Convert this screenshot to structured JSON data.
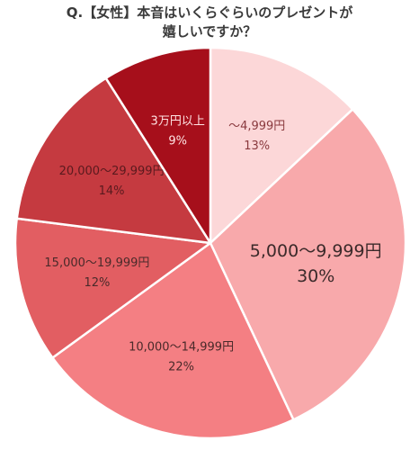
{
  "title_lines": [
    "Q.【女性】本音はいくらぐらいのプレゼントが",
    "嬉しいですか？"
  ],
  "chart_data": {
    "type": "pie",
    "title": "Q.【女性】本音はいくらぐらいのプレゼントが嬉しいですか？",
    "start": "12 o'clock",
    "direction": "clockwise",
    "slices": [
      {
        "label": "〜4,999円",
        "value": 13,
        "value_label": "13%",
        "color": "#fcd7d8",
        "text_color": "#8a3a3e",
        "emphasis": false
      },
      {
        "label": "5,000〜9,999円",
        "value": 30,
        "value_label": "30%",
        "color": "#f8a9ab",
        "text_color": "#3b2a2a",
        "emphasis": true
      },
      {
        "label": "10,000〜14,999円",
        "value": 22,
        "value_label": "22%",
        "color": "#f47f83",
        "text_color": "#4a2a2a",
        "emphasis": false
      },
      {
        "label": "15,000〜19,999円",
        "value": 12,
        "value_label": "12%",
        "color": "#e25e62",
        "text_color": "#4a2a2a",
        "emphasis": false
      },
      {
        "label": "20,000〜29,999円",
        "value": 14,
        "value_label": "14%",
        "color": "#c53a40",
        "text_color": "#5a1a1e",
        "emphasis": false
      },
      {
        "label": "3万円以上",
        "value": 9,
        "value_label": "9%",
        "color": "#a60f1b",
        "text_color": "#ffe3e3",
        "emphasis": false
      }
    ]
  }
}
